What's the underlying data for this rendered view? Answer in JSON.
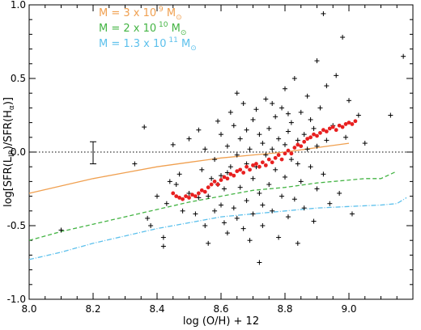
{
  "chart_data": {
    "type": "scatter",
    "xlabel": "log (O/H) + 12",
    "ylabel": "log[SFR(L",
    "ylabel_sub1": "IR",
    "ylabel_mid": ")/SFR(H",
    "ylabel_sub2": "α",
    "ylabel_end": ")]",
    "xlim": [
      8.0,
      9.2
    ],
    "ylim": [
      -1.0,
      1.0
    ],
    "x_ticks": [
      "8.0",
      "8.2",
      "8.4",
      "8.6",
      "8.8",
      "9.0"
    ],
    "x_tick_values": [
      8.0,
      8.2,
      8.4,
      8.6,
      8.8,
      9.0
    ],
    "y_ticks": [
      "-1.0",
      "-0.5",
      "0.0",
      "0.5",
      "1.0"
    ],
    "y_tick_values": [
      -1.0,
      -0.5,
      0.0,
      0.5,
      1.0
    ],
    "reference_line": {
      "y": 0.0,
      "style": "dotted",
      "color": "#000000"
    },
    "error_bar": {
      "x": 8.2,
      "y": 0.0,
      "low": -0.08,
      "high": 0.07
    },
    "legend": [
      {
        "text": "M = 3 x 10",
        "exp": "9",
        "unit": "M",
        "sub": "⊙",
        "color": "#f0a050"
      },
      {
        "text": "M = 2 x 10",
        "exp": "10",
        "unit": "M",
        "sub": "⊙",
        "color": "#44b444"
      },
      {
        "text": "M = 1.3 x 10",
        "exp": "11",
        "unit": "M",
        "sub": "⊙",
        "color": "#5cc0ec"
      }
    ],
    "model_lines": [
      {
        "mass": "3e9",
        "color": "#f0a050",
        "style": "solid",
        "x": [
          8.0,
          8.1,
          8.2,
          8.3,
          8.4,
          8.5,
          8.6,
          8.7,
          8.8,
          8.9,
          9.0
        ],
        "y": [
          -0.28,
          -0.23,
          -0.18,
          -0.14,
          -0.1,
          -0.07,
          -0.04,
          -0.02,
          0.0,
          0.03,
          0.06
        ]
      },
      {
        "mass": "2e10",
        "color": "#44b444",
        "style": "dashed",
        "x": [
          8.0,
          8.1,
          8.2,
          8.3,
          8.4,
          8.5,
          8.6,
          8.7,
          8.8,
          8.9,
          9.0,
          9.05,
          9.1,
          9.15
        ],
        "y": [
          -0.6,
          -0.54,
          -0.49,
          -0.44,
          -0.39,
          -0.34,
          -0.3,
          -0.26,
          -0.24,
          -0.21,
          -0.19,
          -0.18,
          -0.18,
          -0.13
        ]
      },
      {
        "mass": "1.3e11",
        "color": "#5cc0ec",
        "style": "dashdot",
        "x": [
          8.0,
          8.1,
          8.2,
          8.3,
          8.4,
          8.5,
          8.6,
          8.7,
          8.8,
          8.9,
          9.0,
          9.1,
          9.15,
          9.18
        ],
        "y": [
          -0.73,
          -0.68,
          -0.62,
          -0.57,
          -0.52,
          -0.48,
          -0.44,
          -0.42,
          -0.4,
          -0.38,
          -0.37,
          -0.36,
          -0.35,
          -0.31
        ]
      }
    ],
    "crosses": [
      [
        8.1,
        -0.53
      ],
      [
        8.36,
        0.17
      ],
      [
        8.33,
        -0.08
      ],
      [
        8.37,
        -0.45
      ],
      [
        8.38,
        -0.5
      ],
      [
        8.4,
        -0.3
      ],
      [
        8.42,
        -0.58
      ],
      [
        8.42,
        -0.64
      ],
      [
        8.43,
        -0.35
      ],
      [
        8.44,
        -0.2
      ],
      [
        8.45,
        0.05
      ],
      [
        8.46,
        -0.22
      ],
      [
        8.47,
        -0.15
      ],
      [
        8.48,
        -0.4
      ],
      [
        8.5,
        0.09
      ],
      [
        8.5,
        -0.28
      ],
      [
        8.52,
        -0.42
      ],
      [
        8.53,
        0.15
      ],
      [
        8.53,
        -0.31
      ],
      [
        8.54,
        -0.12
      ],
      [
        8.55,
        -0.5
      ],
      [
        8.55,
        0.02
      ],
      [
        8.56,
        -0.3
      ],
      [
        8.56,
        -0.62
      ],
      [
        8.57,
        -0.18
      ],
      [
        8.58,
        -0.05
      ],
      [
        8.58,
        -0.4
      ],
      [
        8.59,
        0.21
      ],
      [
        8.6,
        -0.36
      ],
      [
        8.6,
        -0.16
      ],
      [
        8.6,
        0.12
      ],
      [
        8.61,
        -0.48
      ],
      [
        8.61,
        -0.25
      ],
      [
        8.62,
        0.04
      ],
      [
        8.62,
        -0.55
      ],
      [
        8.63,
        0.27
      ],
      [
        8.63,
        -0.1
      ],
      [
        8.64,
        -0.38
      ],
      [
        8.64,
        0.18
      ],
      [
        8.65,
        -0.02
      ],
      [
        8.65,
        -0.45
      ],
      [
        8.66,
        -0.24
      ],
      [
        8.66,
        0.09
      ],
      [
        8.67,
        0.33
      ],
      [
        8.67,
        -0.52
      ],
      [
        8.68,
        -0.08
      ],
      [
        8.68,
        -0.33
      ],
      [
        8.69,
        0.02
      ],
      [
        8.69,
        -0.6
      ],
      [
        8.7,
        0.22
      ],
      [
        8.7,
        -0.18
      ],
      [
        8.7,
        -0.42
      ],
      [
        8.71,
        0.29
      ],
      [
        8.71,
        -0.1
      ],
      [
        8.72,
        0.12
      ],
      [
        8.72,
        -0.28
      ],
      [
        8.73,
        -0.5
      ],
      [
        8.73,
        0.06
      ],
      [
        8.74,
        -0.02
      ],
      [
        8.74,
        0.36
      ],
      [
        8.75,
        -0.22
      ],
      [
        8.75,
        0.16
      ],
      [
        8.76,
        -0.4
      ],
      [
        8.76,
        0.02
      ],
      [
        8.77,
        0.24
      ],
      [
        8.77,
        -0.12
      ],
      [
        8.78,
        -0.58
      ],
      [
        8.78,
        0.09
      ],
      [
        8.79,
        -0.3
      ],
      [
        8.79,
        0.3
      ],
      [
        8.8,
        0.05
      ],
      [
        8.8,
        -0.17
      ],
      [
        8.8,
        0.43
      ],
      [
        8.81,
        -0.44
      ],
      [
        8.81,
        0.14
      ],
      [
        8.82,
        -0.05
      ],
      [
        8.82,
        0.2
      ],
      [
        8.83,
        -0.32
      ],
      [
        8.83,
        0.5
      ],
      [
        8.84,
        0.08
      ],
      [
        8.84,
        -0.62
      ],
      [
        8.85,
        0.27
      ],
      [
        8.85,
        -0.2
      ],
      [
        8.86,
        0.12
      ],
      [
        8.86,
        -0.38
      ],
      [
        8.87,
        0.38
      ],
      [
        8.87,
        0.02
      ],
      [
        8.88,
        -0.1
      ],
      [
        8.88,
        0.22
      ],
      [
        8.89,
        -0.47
      ],
      [
        8.89,
        0.16
      ],
      [
        8.9,
        0.62
      ],
      [
        8.9,
        -0.25
      ],
      [
        8.9,
        0.04
      ],
      [
        8.91,
        0.3
      ],
      [
        8.92,
        0.94
      ],
      [
        8.92,
        -0.15
      ],
      [
        8.93,
        0.45
      ],
      [
        8.93,
        0.08
      ],
      [
        8.94,
        -0.35
      ],
      [
        8.95,
        0.18
      ],
      [
        8.96,
        0.52
      ],
      [
        8.97,
        -0.28
      ],
      [
        8.98,
        0.78
      ],
      [
        8.99,
        0.1
      ],
      [
        9.0,
        0.35
      ],
      [
        9.01,
        -0.42
      ],
      [
        9.03,
        0.25
      ],
      [
        9.05,
        0.06
      ],
      [
        9.13,
        0.25
      ],
      [
        9.17,
        0.65
      ],
      [
        8.72,
        -0.75
      ],
      [
        8.65,
        0.4
      ],
      [
        8.59,
        -0.22
      ],
      [
        8.68,
        0.15
      ],
      [
        8.76,
        0.33
      ],
      [
        8.84,
        -0.08
      ],
      [
        8.73,
        -0.36
      ],
      [
        8.62,
        -0.14
      ],
      [
        8.81,
        0.26
      ]
    ],
    "red_points": [
      [
        8.45,
        -0.28
      ],
      [
        8.46,
        -0.3
      ],
      [
        8.47,
        -0.31
      ],
      [
        8.48,
        -0.32
      ],
      [
        8.49,
        -0.3
      ],
      [
        8.5,
        -0.31
      ],
      [
        8.51,
        -0.29
      ],
      [
        8.52,
        -0.3
      ],
      [
        8.53,
        -0.28
      ],
      [
        8.54,
        -0.26
      ],
      [
        8.55,
        -0.27
      ],
      [
        8.56,
        -0.24
      ],
      [
        8.57,
        -0.22
      ],
      [
        8.58,
        -0.2
      ],
      [
        8.59,
        -0.22
      ],
      [
        8.6,
        -0.19
      ],
      [
        8.61,
        -0.17
      ],
      [
        8.62,
        -0.18
      ],
      [
        8.63,
        -0.15
      ],
      [
        8.64,
        -0.16
      ],
      [
        8.65,
        -0.13
      ],
      [
        8.66,
        -0.12
      ],
      [
        8.67,
        -0.14
      ],
      [
        8.68,
        -0.1
      ],
      [
        8.69,
        -0.12
      ],
      [
        8.7,
        -0.09
      ],
      [
        8.71,
        -0.08
      ],
      [
        8.72,
        -0.1
      ],
      [
        8.73,
        -0.07
      ],
      [
        8.74,
        -0.09
      ],
      [
        8.75,
        -0.05
      ],
      [
        8.76,
        -0.07
      ],
      [
        8.77,
        -0.04
      ],
      [
        8.78,
        -0.02
      ],
      [
        8.79,
        -0.05
      ],
      [
        8.8,
        -0.01
      ],
      [
        8.81,
        0.01
      ],
      [
        8.82,
        -0.01
      ],
      [
        8.83,
        0.03
      ],
      [
        8.84,
        0.05
      ],
      [
        8.85,
        0.04
      ],
      [
        8.86,
        0.07
      ],
      [
        8.87,
        0.09
      ],
      [
        8.88,
        0.1
      ],
      [
        8.89,
        0.12
      ],
      [
        8.9,
        0.11
      ],
      [
        8.91,
        0.13
      ],
      [
        8.92,
        0.15
      ],
      [
        8.93,
        0.14
      ],
      [
        8.94,
        0.16
      ],
      [
        8.95,
        0.17
      ],
      [
        8.96,
        0.15
      ],
      [
        8.97,
        0.18
      ],
      [
        8.98,
        0.17
      ],
      [
        8.99,
        0.19
      ],
      [
        9.0,
        0.2
      ],
      [
        9.01,
        0.19
      ],
      [
        9.02,
        0.21
      ]
    ]
  }
}
